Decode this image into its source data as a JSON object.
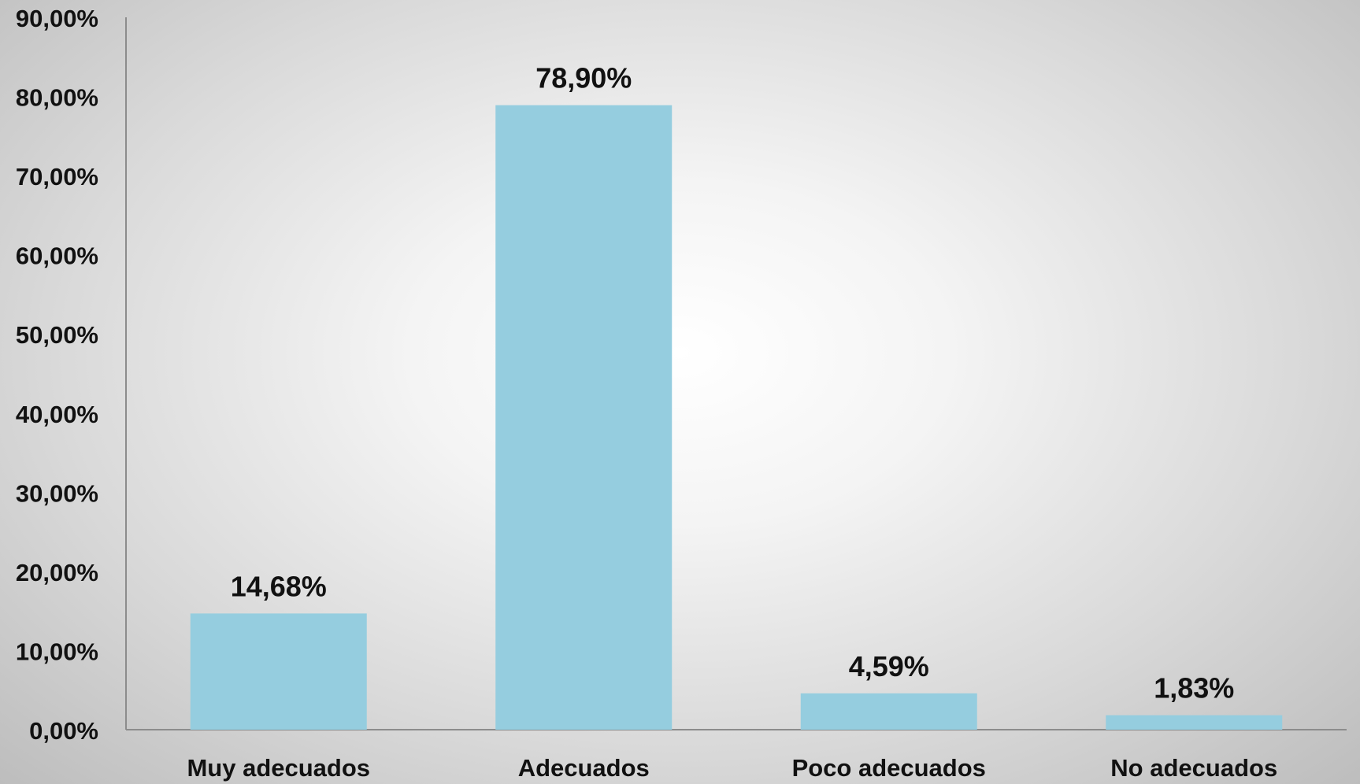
{
  "chart_data": {
    "type": "bar",
    "categories": [
      "Muy adecuados",
      "Adecuados",
      "Poco adecuados",
      "No adecuados"
    ],
    "values": [
      14.68,
      78.9,
      4.59,
      1.83
    ],
    "value_labels": [
      "14,68%",
      "78,90%",
      "4,59%",
      "1,83%"
    ],
    "ylim": [
      0,
      90
    ],
    "yticks": [
      0,
      10,
      20,
      30,
      40,
      50,
      60,
      70,
      80,
      90
    ],
    "ytick_labels": [
      "0,00%",
      "10,00%",
      "20,00%",
      "30,00%",
      "40,00%",
      "50,00%",
      "60,00%",
      "70,00%",
      "80,00%",
      "90,00%"
    ],
    "title": "",
    "xlabel": "",
    "ylabel": "",
    "grid": false,
    "legend": "none",
    "colors": {
      "bar": "#95CDDF",
      "axis": "#8c8c8c",
      "text": "#111111"
    }
  }
}
